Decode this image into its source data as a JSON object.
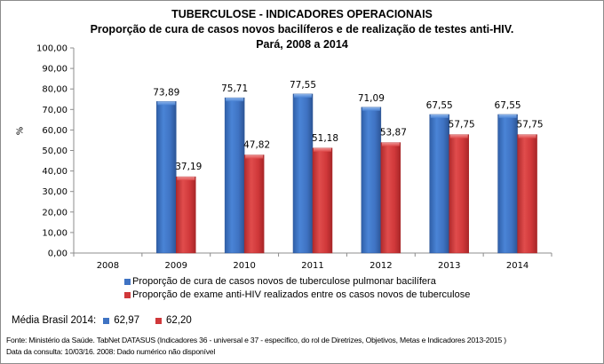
{
  "header": {
    "title": "TUBERCULOSE - INDICADORES OPERACIONAIS",
    "subtitle": "Proporção de cura de casos novos bacilíferos e de realização de testes anti-HIV.",
    "region": "Pará, 2008 a 2014"
  },
  "chart_data": {
    "type": "bar",
    "title": "TUBERCULOSE - INDICADORES OPERACIONAIS",
    "subtitle": "Proporção de cura de casos novos bacilíferos e de realização de testes anti-HIV. Pará, 2008 a 2014",
    "xlabel": "",
    "ylabel": "%",
    "ylim": [
      0,
      100
    ],
    "yticks": [
      "0,00",
      "10,00",
      "20,00",
      "30,00",
      "40,00",
      "50,00",
      "60,00",
      "70,00",
      "80,00",
      "90,00",
      "100,00"
    ],
    "ytick_values": [
      0,
      10,
      20,
      30,
      40,
      50,
      60,
      70,
      80,
      90,
      100
    ],
    "grid": false,
    "legend_position": "bottom",
    "categories": [
      "2008",
      "2009",
      "2010",
      "2011",
      "2012",
      "2013",
      "2014"
    ],
    "series": [
      {
        "name": "Proporção de cura de casos novos de tuberculose pulmonar bacilífera",
        "color": "#3F73C3",
        "values": [
          null,
          73.89,
          75.71,
          77.55,
          71.09,
          67.55,
          67.55
        ],
        "labels": [
          "",
          "73,89",
          "75,71",
          "77,55",
          "71,09",
          "67,55",
          "67,55"
        ]
      },
      {
        "name": "Proporção de exame anti-HIV realizados entre os casos novos de tuberculose",
        "color": "#D0383A",
        "values": [
          null,
          37.19,
          47.82,
          51.18,
          53.87,
          57.75,
          57.75
        ],
        "labels": [
          "",
          "37,19",
          "47,82",
          "51,18",
          "53,87",
          "57,75",
          "57,75"
        ]
      }
    ]
  },
  "media_brasil": {
    "label": "Média Brasil 2014:",
    "values": [
      {
        "series": 0,
        "value": "62,97",
        "color": "#3F73C3"
      },
      {
        "series": 1,
        "value": "62,20",
        "color": "#D0383A"
      }
    ]
  },
  "footer": {
    "source": "Fonte: Ministério da Saúde. TabNet DATASUS (Indicadores 36 - universal e 37 - específico, do rol de Diretrizes, Objetivos, Metas e Indicadores 2013-2015 )",
    "note": "Data da consulta: 10/03/16. 2008: Dado numérico não disponível"
  }
}
